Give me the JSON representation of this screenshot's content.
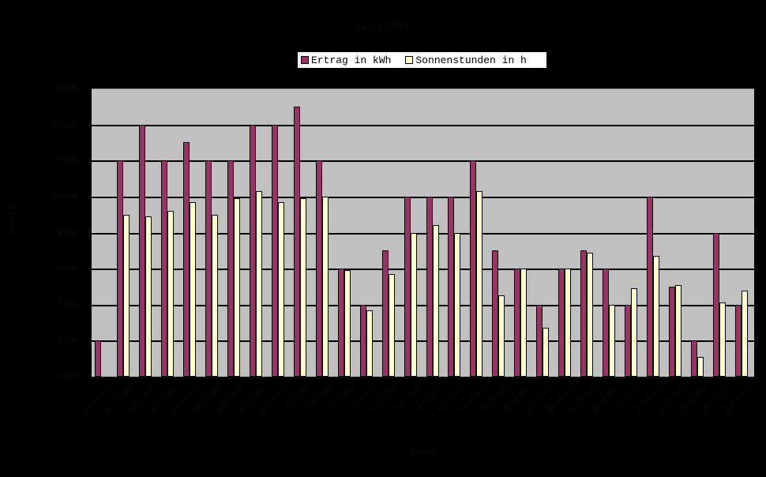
{
  "chart_data": {
    "type": "bar",
    "title": "März 2013",
    "xlabel": "Datum",
    "ylabel": "kWh / h",
    "ylim": [
      0,
      16
    ],
    "yticks": [
      "0,000",
      "2,000",
      "4,000",
      "6,000",
      "8,000",
      "10,000",
      "12,000",
      "14,000",
      "16,000"
    ],
    "grid": true,
    "legend_position": "top",
    "categories": [
      "01.03.2013",
      "02.03.2013",
      "03.03.2013",
      "04.03.2013",
      "05.03.2013",
      "06.03.2013",
      "07.03.2013",
      "08.03.2013",
      "09.03.2013",
      "10.03.2013",
      "11.03.2013",
      "12.03.2013",
      "13.03.2013",
      "14.03.2013",
      "15.03.2013",
      "16.03.2013",
      "17.03.2013",
      "18.03.2013",
      "19.03.2013",
      "20.03.2013",
      "21.03.2013",
      "22.03.2013",
      "23.03.2013",
      "24.03.2013",
      "25.03.2013",
      "26.03.2013",
      "27.03.2013",
      "28.03.2013",
      "29.03.2013",
      "30.03.2013"
    ],
    "series": [
      {
        "name": "Ertrag in kWh",
        "color": "#993366",
        "values": [
          2,
          12,
          14,
          12,
          13,
          12,
          12,
          14,
          14,
          15,
          12,
          6,
          4,
          7,
          10,
          10,
          10,
          12,
          7,
          6,
          4,
          6,
          7,
          6,
          4,
          10,
          5,
          2,
          8,
          4
        ]
      },
      {
        "name": "Sonnenstunden in h",
        "color": "#FFFFCC",
        "values": [
          0,
          9.0,
          8.9,
          9.2,
          9.7,
          9.0,
          9.9,
          10.3,
          9.7,
          9.9,
          10.0,
          5.9,
          3.7,
          5.7,
          8.0,
          8.4,
          8.0,
          10.3,
          4.5,
          6.0,
          2.7,
          6.0,
          6.9,
          4.0,
          4.9,
          6.7,
          5.1,
          1.1,
          4.1,
          4.8
        ]
      }
    ]
  },
  "legend": {
    "items": [
      {
        "label": "Ertrag in kWh",
        "color": "#993366"
      },
      {
        "label": "Sonnenstunden in h",
        "color": "#FFFFCC"
      }
    ]
  },
  "colors": {
    "plot_background": "#C0C0C0",
    "page_background": "#000000"
  }
}
